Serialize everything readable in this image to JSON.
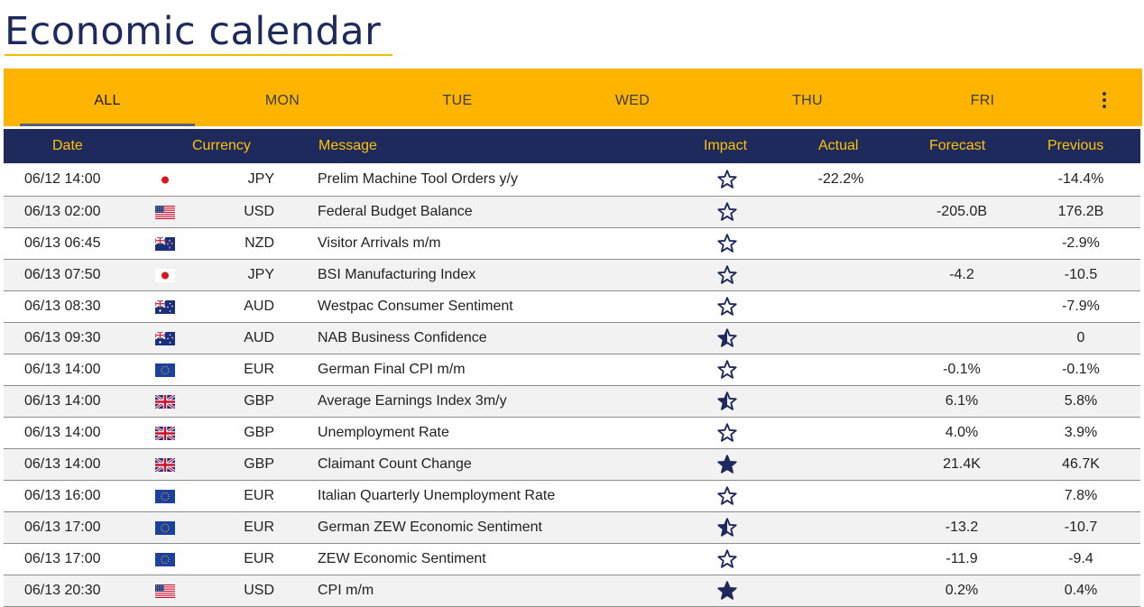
{
  "page": {
    "title": "Economic calendar"
  },
  "tabs": [
    {
      "label": "ALL",
      "active": true
    },
    {
      "label": "MON",
      "active": false
    },
    {
      "label": "TUE",
      "active": false
    },
    {
      "label": "WED",
      "active": false
    },
    {
      "label": "THU",
      "active": false
    },
    {
      "label": "FRI",
      "active": false
    }
  ],
  "columns": {
    "date": "Date",
    "currency": "Currency",
    "message": "Message",
    "impact": "Impact",
    "actual": "Actual",
    "forecast": "Forecast",
    "previous": "Previous"
  },
  "colors": {
    "accent": "#ffb400",
    "header_bg": "#1f2a5c",
    "header_text": "#ffc400",
    "star": "#1f2a5c"
  },
  "rows": [
    {
      "date": "06/12 14:00",
      "flag": "jp-flag-icon",
      "currency": "JPY",
      "message": "Prelim Machine Tool Orders y/y",
      "impact": "low",
      "actual": "-22.2%",
      "forecast": "",
      "previous": "-14.4%"
    },
    {
      "date": "06/13 02:00",
      "flag": "us-flag-icon",
      "currency": "USD",
      "message": "Federal Budget Balance",
      "impact": "low",
      "actual": "",
      "forecast": "-205.0B",
      "previous": "176.2B"
    },
    {
      "date": "06/13 06:45",
      "flag": "nz-flag-icon",
      "currency": "NZD",
      "message": "Visitor Arrivals m/m",
      "impact": "low",
      "actual": "",
      "forecast": "",
      "previous": "-2.9%"
    },
    {
      "date": "06/13 07:50",
      "flag": "jp-flag-icon",
      "currency": "JPY",
      "message": "BSI Manufacturing Index",
      "impact": "low",
      "actual": "",
      "forecast": "-4.2",
      "previous": "-10.5"
    },
    {
      "date": "06/13 08:30",
      "flag": "au-flag-icon",
      "currency": "AUD",
      "message": "Westpac Consumer Sentiment",
      "impact": "low",
      "actual": "",
      "forecast": "",
      "previous": "-7.9%"
    },
    {
      "date": "06/13 09:30",
      "flag": "au-flag-icon",
      "currency": "AUD",
      "message": "NAB Business Confidence",
      "impact": "medium",
      "actual": "",
      "forecast": "",
      "previous": "0"
    },
    {
      "date": "06/13 14:00",
      "flag": "eu-flag-icon",
      "currency": "EUR",
      "message": "German Final CPI m/m",
      "impact": "low",
      "actual": "",
      "forecast": "-0.1%",
      "previous": "-0.1%"
    },
    {
      "date": "06/13 14:00",
      "flag": "gb-flag-icon",
      "currency": "GBP",
      "message": "Average Earnings Index 3m/y",
      "impact": "medium",
      "actual": "",
      "forecast": "6.1%",
      "previous": "5.8%"
    },
    {
      "date": "06/13 14:00",
      "flag": "gb-flag-icon",
      "currency": "GBP",
      "message": "Unemployment Rate",
      "impact": "low",
      "actual": "",
      "forecast": "4.0%",
      "previous": "3.9%"
    },
    {
      "date": "06/13 14:00",
      "flag": "gb-flag-icon",
      "currency": "GBP",
      "message": "Claimant Count Change",
      "impact": "high",
      "actual": "",
      "forecast": "21.4K",
      "previous": "46.7K"
    },
    {
      "date": "06/13 16:00",
      "flag": "eu-flag-icon",
      "currency": "EUR",
      "message": "Italian Quarterly Unemployment Rate",
      "impact": "low",
      "actual": "",
      "forecast": "",
      "previous": "7.8%"
    },
    {
      "date": "06/13 17:00",
      "flag": "eu-flag-icon",
      "currency": "EUR",
      "message": "German ZEW Economic Sentiment",
      "impact": "medium",
      "actual": "",
      "forecast": "-13.2",
      "previous": "-10.7"
    },
    {
      "date": "06/13 17:00",
      "flag": "eu-flag-icon",
      "currency": "EUR",
      "message": "ZEW Economic Sentiment",
      "impact": "low",
      "actual": "",
      "forecast": "-11.9",
      "previous": "-9.4"
    },
    {
      "date": "06/13 20:30",
      "flag": "us-flag-icon",
      "currency": "USD",
      "message": "CPI m/m",
      "impact": "high",
      "actual": "",
      "forecast": "0.2%",
      "previous": "0.4%"
    }
  ]
}
